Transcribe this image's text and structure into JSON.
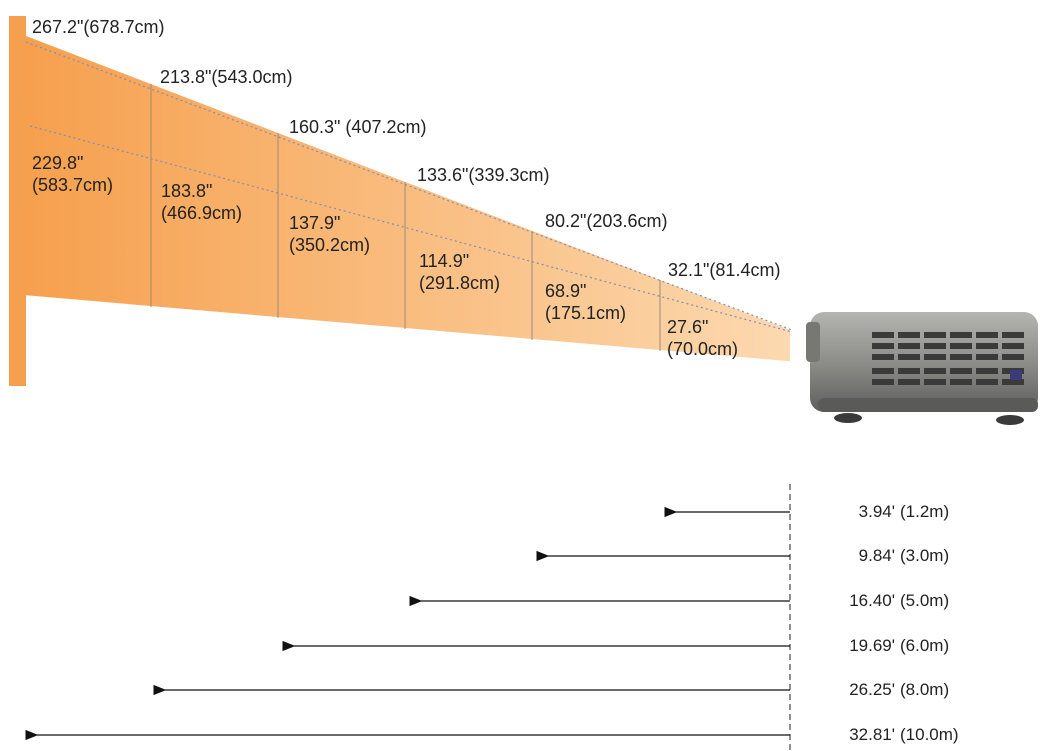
{
  "diagonals": [
    {
      "label": "267.2\"(678.7cm)"
    },
    {
      "label": "213.8\"(543.0cm)"
    },
    {
      "label": "160.3\" (407.2cm)"
    },
    {
      "label": "133.6\"(339.3cm)"
    },
    {
      "label": "80.2\"(203.6cm)"
    },
    {
      "label": "32.1\"(81.4cm)"
    }
  ],
  "widths": [
    {
      "value": "229.8\"",
      "metric": "(583.7cm)"
    },
    {
      "value": "183.8\"",
      "metric": "(466.9cm)"
    },
    {
      "value": "137.9\"",
      "metric": "(350.2cm)"
    },
    {
      "value": "114.9\"",
      "metric": "(291.8cm)"
    },
    {
      "value": "68.9\"",
      "metric": "(175.1cm)"
    },
    {
      "value": "27.6\"",
      "metric": "(70.0cm)"
    }
  ],
  "distances": [
    {
      "feet": "3.94'",
      "meters": "(1.2m)"
    },
    {
      "feet": "9.84'",
      "meters": "(3.0m)"
    },
    {
      "feet": "16.40'",
      "meters": "(5.0m)"
    },
    {
      "feet": "19.69'",
      "meters": "(6.0m)"
    },
    {
      "feet": "26.25'",
      "meters": "(8.0m)"
    },
    {
      "feet": "32.81'",
      "meters": "(10.0m)"
    }
  ],
  "colors": {
    "beam_far": "#f6a04e",
    "beam_near": "#fcd9b0",
    "wall": "#f5a04f",
    "divider": "#a08a75",
    "dotted": "#8a8ab0",
    "arrow": "#111111",
    "projector_body": "#8d8d8a",
    "projector_dark": "#3a3a3a"
  },
  "icons": {
    "projector": "projector-icon"
  }
}
